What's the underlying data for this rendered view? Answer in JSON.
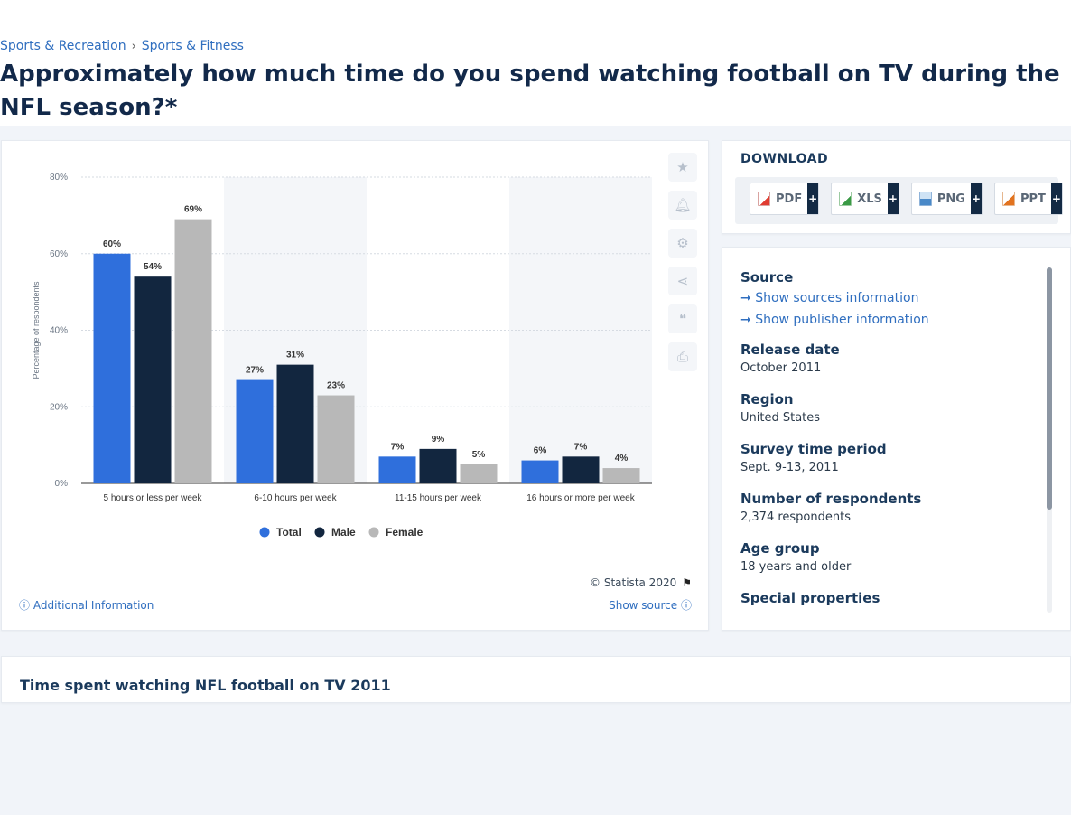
{
  "breadcrumb": {
    "items": [
      "Sports & Recreation",
      "Sports & Fitness"
    ],
    "separator": "›"
  },
  "page_title": "Approximately how much time do you spend watching football on TV during the NFL season?*",
  "chart_data": {
    "type": "bar",
    "categories": [
      "5 hours or less per week",
      "6-10 hours per week",
      "11-15 hours per week",
      "16 hours or more per week"
    ],
    "series": [
      {
        "name": "Total",
        "color": "#2f6fdc",
        "values": [
          60,
          27,
          7,
          6
        ],
        "labels": [
          "60%",
          "27%",
          "7%",
          "6%"
        ]
      },
      {
        "name": "Male",
        "color": "#12263f",
        "values": [
          54,
          31,
          9,
          7
        ],
        "labels": [
          "54%",
          "31%",
          "9%",
          "7%"
        ]
      },
      {
        "name": "Female",
        "color": "#b8b8b8",
        "values": [
          69,
          23,
          5,
          4
        ],
        "labels": [
          "69%",
          "23%",
          "5%",
          "4%"
        ]
      }
    ],
    "ylabel": "Percentage of respondents",
    "ylim": [
      0,
      80
    ],
    "yticks": [
      0,
      20,
      40,
      60,
      80
    ],
    "ytick_labels": [
      "0%",
      "20%",
      "40%",
      "60%",
      "80%"
    ],
    "grid": true,
    "legend_position": "bottom"
  },
  "chart_footer": {
    "copyright": "© Statista 2020",
    "additional_info": "Additional Information",
    "show_source": "Show source"
  },
  "side_tools": [
    "star-icon",
    "bell-icon",
    "gear-icon",
    "share-icon",
    "quote-icon",
    "print-icon"
  ],
  "download": {
    "title": "DOWNLOAD",
    "buttons": [
      {
        "label": "PDF",
        "color": "#e03c31"
      },
      {
        "label": "XLS",
        "color": "#3a9a45"
      },
      {
        "label": "PNG",
        "color": "#4a89c8"
      },
      {
        "label": "PPT",
        "color": "#e2731f"
      }
    ],
    "plus": "+"
  },
  "info": {
    "source_title": "Source",
    "show_sources": "Show sources information",
    "show_publisher": "Show publisher information",
    "arrow": "➞",
    "fields": [
      {
        "label": "Release date",
        "value": "October 2011"
      },
      {
        "label": "Region",
        "value": "United States"
      },
      {
        "label": "Survey time period",
        "value": "Sept. 9-13, 2011"
      },
      {
        "label": "Number of respondents",
        "value": "2,374 respondents"
      },
      {
        "label": "Age group",
        "value": "18 years and older"
      },
      {
        "label": "Special properties",
        "value": ""
      }
    ]
  },
  "bottom": {
    "title": "Time spent watching NFL football on TV 2011"
  }
}
